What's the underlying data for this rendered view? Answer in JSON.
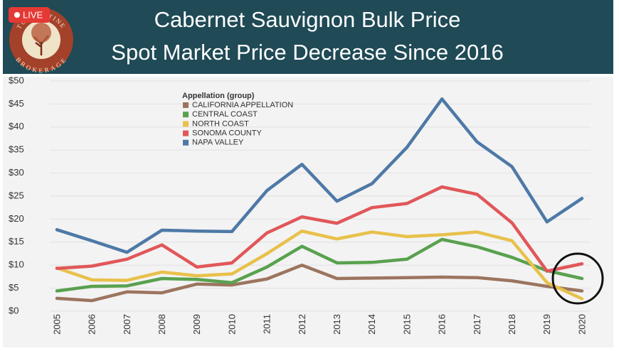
{
  "header": {
    "badge": "LIVE",
    "logo_top": "TURRENTINE",
    "logo_bottom": "BROKERAGE"
  },
  "chart_data": {
    "type": "line",
    "title": "Cabernet Sauvignon Bulk Price",
    "subtitle": "Spot Market Price Decrease Since 2016",
    "legend_title": "Appellation (group)",
    "legend": "upper-left",
    "grid": true,
    "categories": [
      "2005",
      "2006",
      "2007",
      "2008",
      "2009",
      "2010",
      "2011",
      "2012",
      "2013",
      "2014",
      "2015",
      "2016",
      "2017",
      "2018",
      "2019",
      "2020"
    ],
    "ylim": [
      0,
      50
    ],
    "yticks": [
      {
        "value": 0,
        "label": "$0"
      },
      {
        "value": 5,
        "label": "$5"
      },
      {
        "value": 10,
        "label": "$10"
      },
      {
        "value": 15,
        "label": "$15"
      },
      {
        "value": 20,
        "label": "$20"
      },
      {
        "value": 25,
        "label": "$25"
      },
      {
        "value": 30,
        "label": "$30"
      },
      {
        "value": 35,
        "label": "$35"
      },
      {
        "value": 40,
        "label": "$40"
      },
      {
        "value": 45,
        "label": "$45"
      },
      {
        "value": 50,
        "label": "$50"
      }
    ],
    "series": [
      {
        "name": "CALIFORNIA APPELLATION",
        "color": "#9c755f",
        "values": [
          2.8,
          2.3,
          4.2,
          4.0,
          5.9,
          5.7,
          7.0,
          10.0,
          7.1,
          7.2,
          7.3,
          7.4,
          7.3,
          6.6,
          5.4,
          4.4
        ]
      },
      {
        "name": "CENTRAL COAST",
        "color": "#59a14f",
        "values": [
          4.4,
          5.4,
          5.5,
          7.1,
          6.9,
          6.2,
          9.6,
          14.1,
          10.5,
          10.6,
          11.3,
          15.6,
          14.0,
          11.7,
          8.8,
          7.1
        ]
      },
      {
        "name": "NORTH COAST",
        "color": "#e8c14b",
        "values": [
          9.4,
          6.8,
          6.7,
          8.5,
          7.7,
          8.1,
          12.5,
          17.4,
          15.7,
          17.2,
          16.2,
          16.6,
          17.2,
          15.3,
          6.2,
          2.7
        ]
      },
      {
        "name": "SONOMA COUNTY",
        "color": "#e15759",
        "values": [
          9.3,
          9.8,
          11.3,
          14.4,
          9.6,
          10.5,
          17.0,
          20.5,
          19.1,
          22.5,
          23.4,
          27.0,
          25.4,
          19.2,
          8.7,
          10.3
        ]
      },
      {
        "name": "NAPA VALLEY",
        "color": "#4e79a7",
        "values": [
          17.7,
          15.3,
          12.8,
          17.6,
          17.4,
          17.3,
          26.2,
          31.9,
          23.9,
          27.7,
          35.6,
          46.1,
          36.8,
          31.4,
          19.4,
          24.5
        ]
      }
    ]
  }
}
